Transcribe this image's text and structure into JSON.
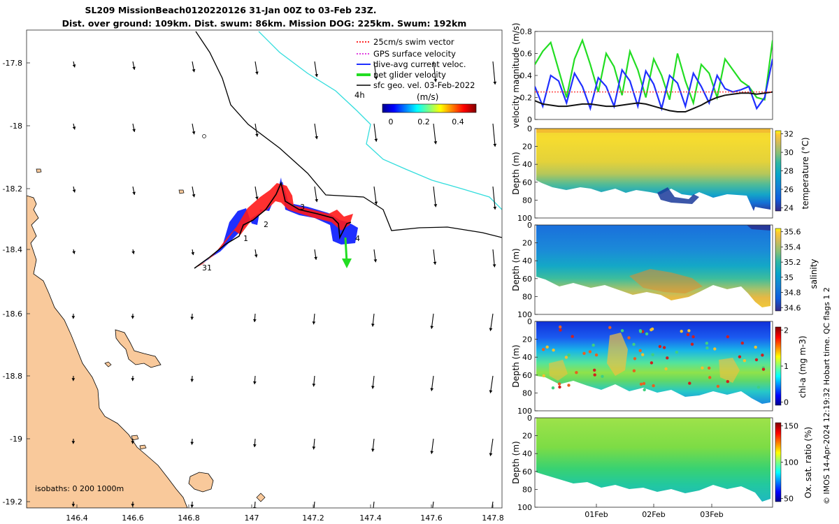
{
  "title": {
    "line1": "SL209 MissionBeach0120220126 31-Jan 00Z to 03-Feb 23Z.",
    "line2": "Dist. over ground: 109km. Dist. swum: 86km. Mission DOG: 225km. Swum: 192km"
  },
  "map": {
    "x_ticks": [
      "146.4",
      "146.6",
      "146.8",
      "147",
      "147.2",
      "147.4",
      "147.6",
      "147.8"
    ],
    "y_ticks": [
      "-17.8",
      "-18",
      "-18.2",
      "-18.4",
      "-18.6",
      "-18.8",
      "-19",
      "-19.2"
    ],
    "legend": [
      {
        "label": "25cm/s swim vector",
        "color": "#ff2a2a",
        "style": "dotted"
      },
      {
        "label": "GPS surface velocity",
        "color": "#e040e0",
        "style": "dotted"
      },
      {
        "label": "dive-avg current veloc.",
        "color": "#1f2fff",
        "style": "solid"
      },
      {
        "label": "net glider velocity",
        "color": "#22dd22",
        "style": "thick"
      },
      {
        "label": "sfc geo. vel. 03-Feb-2022",
        "color": "#000000",
        "style": "solid"
      }
    ],
    "scale_label": "4h",
    "colorbar": {
      "label": "(m/s)",
      "ticks": [
        "0",
        "0.2",
        "0.4"
      ],
      "range": [
        0,
        0.5
      ]
    },
    "track_labels": [
      "31",
      "1",
      "2",
      "3",
      "4"
    ],
    "isobaths_label": "isobaths: 0   200  1000m",
    "land_color": "#f9c99b"
  },
  "velocity_panel": {
    "ylabel": "velocity magnitude (m/s)",
    "y_ticks": [
      "0",
      "0.2",
      "0.4",
      "0.6",
      "0.8"
    ],
    "ylim": [
      0,
      0.8
    ]
  },
  "depth_panels": [
    {
      "name": "temperature",
      "cbar_label": "temperature (°C)",
      "cbar_ticks": [
        "24",
        "26",
        "28",
        "30",
        "32"
      ],
      "cmap": "parula"
    },
    {
      "name": "salinity",
      "cbar_label": "salinity",
      "cbar_ticks": [
        "34.6",
        "34.8",
        "35",
        "35.2",
        "35.4",
        "35.6"
      ],
      "cmap": "parula"
    },
    {
      "name": "chla",
      "cbar_label": "chl-a (mg m-3)",
      "cbar_ticks": [
        "0",
        "1",
        "2"
      ],
      "cmap": "jet"
    },
    {
      "name": "oxygen",
      "cbar_label": "Ox. sat. ratio (%)",
      "cbar_ticks": [
        "50",
        "100",
        "150"
      ],
      "cmap": "jet"
    }
  ],
  "depth_axis": {
    "ylabel": "Depth (m)",
    "ticks": [
      "0",
      "20",
      "40",
      "60",
      "80",
      "100"
    ]
  },
  "time_axis": {
    "ticks": [
      "01Feb",
      "02Feb",
      "03Feb"
    ]
  },
  "credit": "© IMOS 14-Apr-2024 12:19:32 Hobart time. QC flags 1  2",
  "chart_data": [
    {
      "type": "line",
      "title": "",
      "xlabel": "",
      "ylabel": "velocity magnitude (m/s)",
      "x_ticks": [
        "01Feb",
        "02Feb",
        "03Feb"
      ],
      "ylim": [
        0,
        0.8
      ],
      "series": [
        {
          "color": "#22dd22",
          "values": [
            0.5,
            0.62,
            0.7,
            0.45,
            0.2,
            0.55,
            0.72,
            0.5,
            0.25,
            0.6,
            0.48,
            0.22,
            0.62,
            0.45,
            0.2,
            0.55,
            0.4,
            0.18,
            0.6,
            0.35,
            0.15,
            0.5,
            0.42,
            0.2,
            0.55,
            0.45,
            0.35,
            0.3,
            0.2,
            0.18,
            0.72
          ]
        },
        {
          "color": "#1f2fff",
          "values": [
            0.3,
            0.12,
            0.4,
            0.35,
            0.15,
            0.42,
            0.3,
            0.1,
            0.38,
            0.3,
            0.12,
            0.45,
            0.35,
            0.12,
            0.44,
            0.32,
            0.1,
            0.4,
            0.33,
            0.12,
            0.42,
            0.3,
            0.15,
            0.4,
            0.28,
            0.25,
            0.27,
            0.3,
            0.1,
            0.2,
            0.55
          ]
        },
        {
          "color": "#111111",
          "values": [
            0.17,
            0.14,
            0.13,
            0.12,
            0.12,
            0.13,
            0.14,
            0.14,
            0.13,
            0.12,
            0.12,
            0.13,
            0.14,
            0.15,
            0.14,
            0.12,
            0.1,
            0.08,
            0.07,
            0.07,
            0.1,
            0.13,
            0.17,
            0.2,
            0.22,
            0.23,
            0.24,
            0.24,
            0.23,
            0.24,
            0.25
          ]
        },
        {
          "color": "#ff2a2a",
          "values": [
            0.25,
            0.25,
            0.25,
            0.25,
            0.25,
            0.25,
            0.25,
            0.25,
            0.25,
            0.25,
            0.25,
            0.25,
            0.25,
            0.25,
            0.25,
            0.25,
            0.25,
            0.25,
            0.25,
            0.25,
            0.25,
            0.25,
            0.25,
            0.25,
            0.25,
            0.25,
            0.25,
            0.25,
            0.25,
            0.25,
            0.25
          ]
        }
      ]
    },
    {
      "type": "heatmap",
      "title": "",
      "ylabel": "Depth (m)",
      "cbar_label": "temperature (°C)",
      "x_ticks": [
        "01Feb",
        "02Feb",
        "03Feb"
      ],
      "ylim": [
        100,
        0
      ]
    },
    {
      "type": "heatmap",
      "title": "",
      "ylabel": "Depth (m)",
      "cbar_label": "salinity",
      "x_ticks": [
        "01Feb",
        "02Feb",
        "03Feb"
      ],
      "ylim": [
        100,
        0
      ]
    },
    {
      "type": "heatmap",
      "title": "",
      "ylabel": "Depth (m)",
      "cbar_label": "chl-a (mg m-3)",
      "x_ticks": [
        "01Feb",
        "02Feb",
        "03Feb"
      ],
      "ylim": [
        100,
        0
      ]
    },
    {
      "type": "heatmap",
      "title": "",
      "ylabel": "Depth (m)",
      "cbar_label": "Ox. sat. ratio (%)",
      "x_ticks": [
        "01Feb",
        "02Feb",
        "03Feb"
      ],
      "ylim": [
        100,
        0
      ]
    }
  ]
}
